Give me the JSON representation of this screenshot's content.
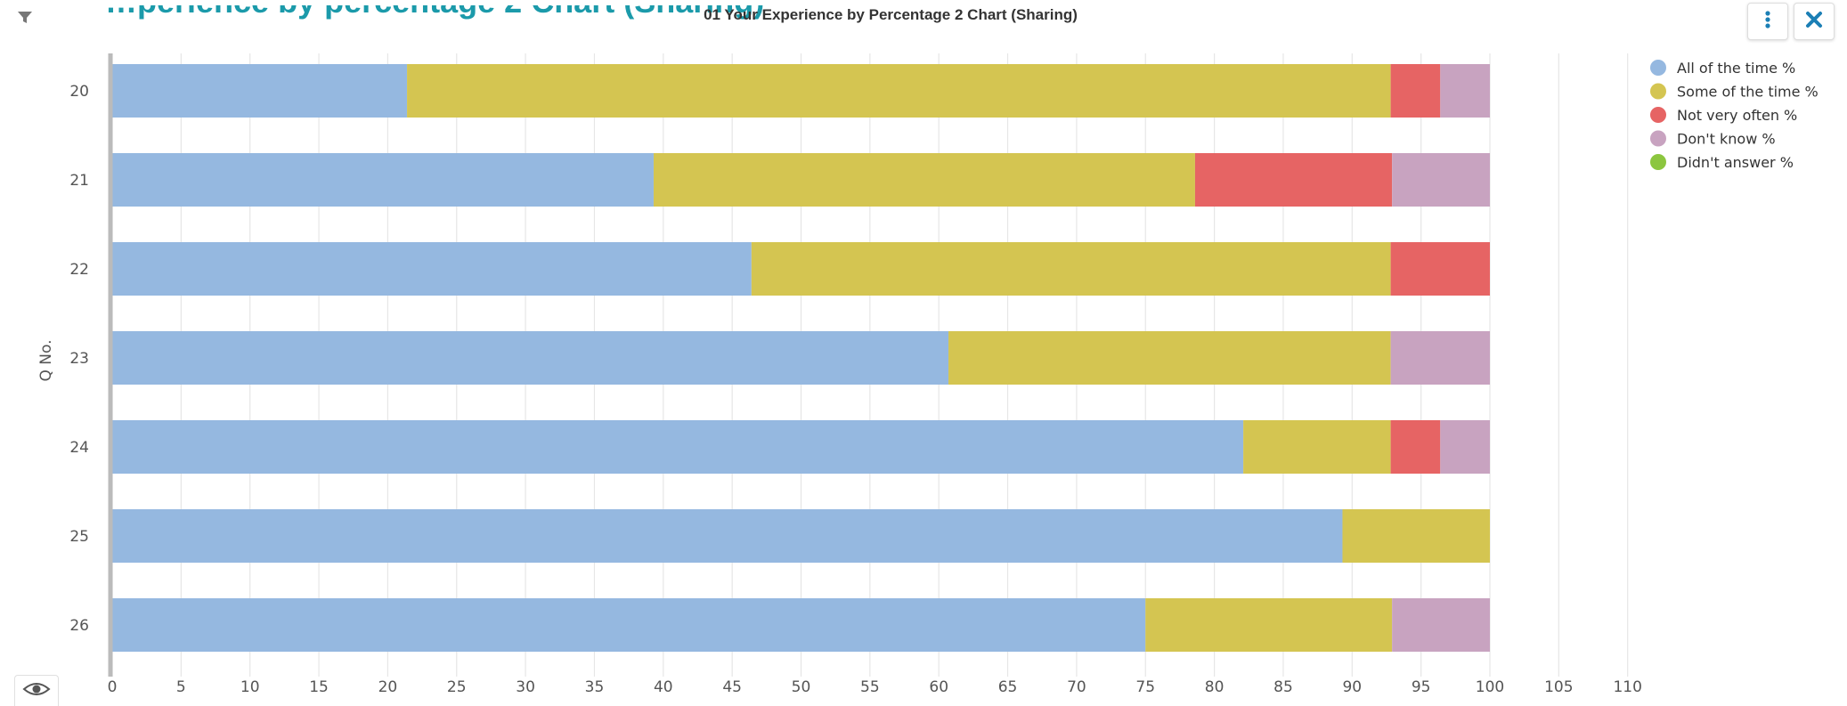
{
  "header": {
    "cut_title": "…perience by percentage 2 Chart (Sharing)"
  },
  "toolbar": {
    "menu_icon": "vertical-dots-icon",
    "close_icon": "close-icon",
    "filter_icon": "filter-icon",
    "eye_icon": "eye-icon"
  },
  "chart_data": {
    "type": "bar",
    "orientation": "horizontal",
    "stacked": true,
    "title": "01 Your Experience by Percentage 2 Chart (Sharing)",
    "ylabel": "Q No.",
    "xlabel": "",
    "categories": [
      "20",
      "21",
      "22",
      "23",
      "24",
      "25",
      "26"
    ],
    "xlim": [
      0,
      110
    ],
    "xticks": [
      0,
      5,
      10,
      15,
      20,
      25,
      30,
      35,
      40,
      45,
      50,
      55,
      60,
      65,
      70,
      75,
      80,
      85,
      90,
      95,
      100,
      105,
      110
    ],
    "grid": true,
    "legend_position": "top-right",
    "series": [
      {
        "name": "All of the time %",
        "color": "#95b8e0",
        "values": [
          21.4,
          39.3,
          46.4,
          60.7,
          82.1,
          89.3,
          75.0
        ]
      },
      {
        "name": "Some of the time %",
        "color": "#d4c551",
        "values": [
          71.4,
          39.3,
          46.4,
          32.1,
          10.7,
          10.7,
          17.9
        ]
      },
      {
        "name": "Not very often %",
        "color": "#e66464",
        "values": [
          3.6,
          14.3,
          7.2,
          0,
          3.6,
          0,
          0
        ]
      },
      {
        "name": "Don't know %",
        "color": "#c8a3c0",
        "values": [
          3.6,
          7.1,
          0,
          7.2,
          3.6,
          0,
          7.1
        ]
      },
      {
        "name": "Didn't answer %",
        "color": "#8cc63f",
        "values": [
          0,
          0,
          0,
          0,
          0,
          0,
          0
        ]
      }
    ]
  }
}
